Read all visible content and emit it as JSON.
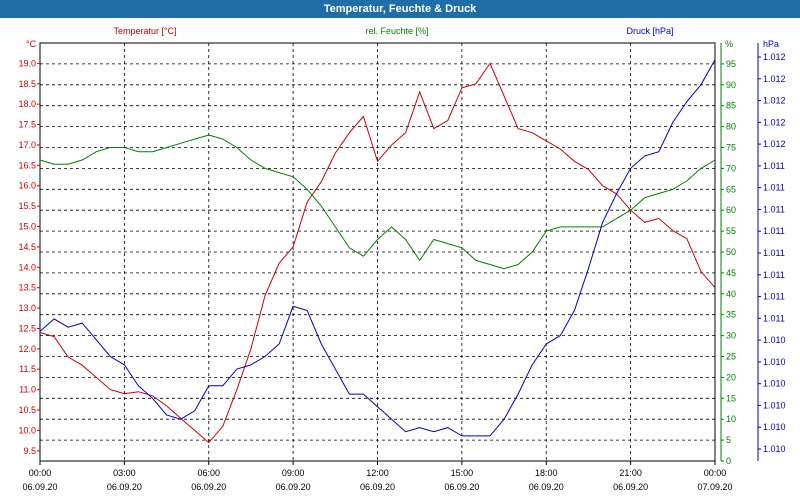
{
  "window": {
    "title": "Temperatur, Feuchte & Druck"
  },
  "chart_data": {
    "type": "line",
    "title": "Temperatur, Feuchte & Druck",
    "xlabel": "",
    "xlim": [
      0,
      24
    ],
    "x_ticks": [
      {
        "x": 0,
        "time": "00:00",
        "date": "06.09.20"
      },
      {
        "x": 3,
        "time": "03:00",
        "date": "06.09.20"
      },
      {
        "x": 6,
        "time": "06:00",
        "date": "06.09.20"
      },
      {
        "x": 9,
        "time": "09:00",
        "date": "06.09.20"
      },
      {
        "x": 12,
        "time": "12:00",
        "date": "06.09.20"
      },
      {
        "x": 15,
        "time": "15:00",
        "date": "06.09.20"
      },
      {
        "x": 18,
        "time": "18:00",
        "date": "06.09.20"
      },
      {
        "x": 21,
        "time": "21:00",
        "date": "06.09.20"
      },
      {
        "x": 24,
        "time": "00:00",
        "date": "07.09.20"
      }
    ],
    "grid": true,
    "axes": {
      "left": {
        "unit": "°C",
        "ylim": [
          9.25,
          19.5
        ],
        "ticks": [
          "9.5",
          "10.0",
          "10.5",
          "11.0",
          "11.5",
          "12.0",
          "12.5",
          "13.0",
          "13.5",
          "14.0",
          "14.5",
          "15.0",
          "15.5",
          "16.0",
          "16.5",
          "17.0",
          "17.5",
          "18.0",
          "18.5",
          "19.0"
        ]
      },
      "right1": {
        "unit": "%",
        "ylim": [
          0,
          100
        ],
        "ticks": [
          "0",
          "5",
          "10",
          "15",
          "20",
          "25",
          "30",
          "35",
          "40",
          "45",
          "50",
          "55",
          "60",
          "65",
          "70",
          "75",
          "80",
          "85",
          "90",
          "95"
        ]
      },
      "right2": {
        "unit": "hPa",
        "ticks": [
          "1.010",
          "1.010",
          "1.010",
          "1.010",
          "1.010",
          "1.010",
          "1.011",
          "1.011",
          "1.011",
          "1.011",
          "1.011",
          "1.011",
          "1.011",
          "1.011",
          "1.012",
          "1.012",
          "1.012",
          "1.012",
          "1.012"
        ]
      }
    },
    "legend": [
      {
        "name": "Temperatur [°C]",
        "color": "#cc0000"
      },
      {
        "name": "rel. Feuchte [%]",
        "color": "#008000"
      },
      {
        "name": "Druck [hPa]",
        "color": "#0000cc"
      }
    ],
    "series": [
      {
        "name": "Temperatur [°C]",
        "axis": "left",
        "color": "#cc0000",
        "x": [
          0,
          0.5,
          1,
          1.5,
          2,
          2.5,
          3,
          3.5,
          4,
          4.5,
          5,
          5.5,
          6,
          6.5,
          7,
          7.5,
          8,
          8.5,
          9,
          9.5,
          10,
          10.5,
          11,
          11.5,
          12,
          12.5,
          13,
          13.5,
          14,
          14.5,
          15,
          15.5,
          16,
          16.5,
          17,
          17.5,
          18,
          18.5,
          19,
          19.5,
          20,
          20.5,
          21,
          21.5,
          22,
          22.5,
          23,
          23.5,
          24
        ],
        "values": [
          12.4,
          12.3,
          11.8,
          11.6,
          11.3,
          11.0,
          10.9,
          10.95,
          10.85,
          10.6,
          10.3,
          10.0,
          9.7,
          10.1,
          11.0,
          12.0,
          13.3,
          14.1,
          14.5,
          15.6,
          16.1,
          16.8,
          17.3,
          17.7,
          16.6,
          17.0,
          17.3,
          18.3,
          17.4,
          17.6,
          18.4,
          18.5,
          19.0,
          18.2,
          17.4,
          17.3,
          17.1,
          16.9,
          16.6,
          16.4,
          16.0,
          15.8,
          15.4,
          15.1,
          15.2,
          14.9,
          14.7,
          13.9,
          13.5
        ]
      },
      {
        "name": "rel. Feuchte [%]",
        "axis": "right1",
        "color": "#008000",
        "x": [
          0,
          0.5,
          1,
          1.5,
          2,
          2.5,
          3,
          3.5,
          4,
          4.5,
          5,
          5.5,
          6,
          6.5,
          7,
          7.5,
          8,
          8.5,
          9,
          9.5,
          10,
          10.5,
          11,
          11.5,
          12,
          12.5,
          13,
          13.5,
          14,
          14.5,
          15,
          15.5,
          16,
          16.5,
          17,
          17.5,
          18,
          18.5,
          19,
          19.5,
          20,
          20.5,
          21,
          21.5,
          22,
          22.5,
          23,
          23.5,
          24
        ],
        "values": [
          72,
          71,
          71,
          72,
          74,
          75,
          75,
          74,
          74,
          75,
          76,
          77,
          78,
          77,
          75,
          72,
          70,
          69,
          68,
          65,
          61,
          56,
          51,
          49,
          53,
          56,
          53,
          48,
          53,
          52,
          51,
          48,
          47,
          46,
          47,
          50,
          55,
          56,
          56,
          56,
          56,
          58,
          60,
          63,
          64,
          65,
          67,
          70,
          72
        ]
      },
      {
        "name": "Druck [hPa]",
        "axis": "right1",
        "color": "#0000cc",
        "x": [
          0,
          0.5,
          1,
          1.5,
          2,
          2.5,
          3,
          3.5,
          4,
          4.5,
          5,
          5.5,
          6,
          6.5,
          7,
          7.5,
          8,
          8.5,
          9,
          9.5,
          10,
          10.5,
          11,
          11.5,
          12,
          12.5,
          13,
          13.5,
          14,
          14.5,
          15,
          15.5,
          16,
          16.5,
          17,
          17.5,
          18,
          18.5,
          19,
          19.5,
          20,
          20.5,
          21,
          21.5,
          22,
          22.5,
          23,
          23.5,
          24
        ],
        "values": [
          31,
          34,
          32,
          33,
          29,
          25,
          23,
          18,
          15,
          11,
          10,
          12,
          18,
          18,
          22,
          23,
          25,
          28,
          37,
          36,
          28,
          22,
          16,
          16,
          13,
          10,
          7,
          8,
          7,
          8,
          6,
          6,
          6,
          10,
          16,
          23,
          28,
          30,
          36,
          46,
          57,
          64,
          70,
          73,
          74,
          81,
          86,
          90,
          96
        ]
      }
    ]
  }
}
